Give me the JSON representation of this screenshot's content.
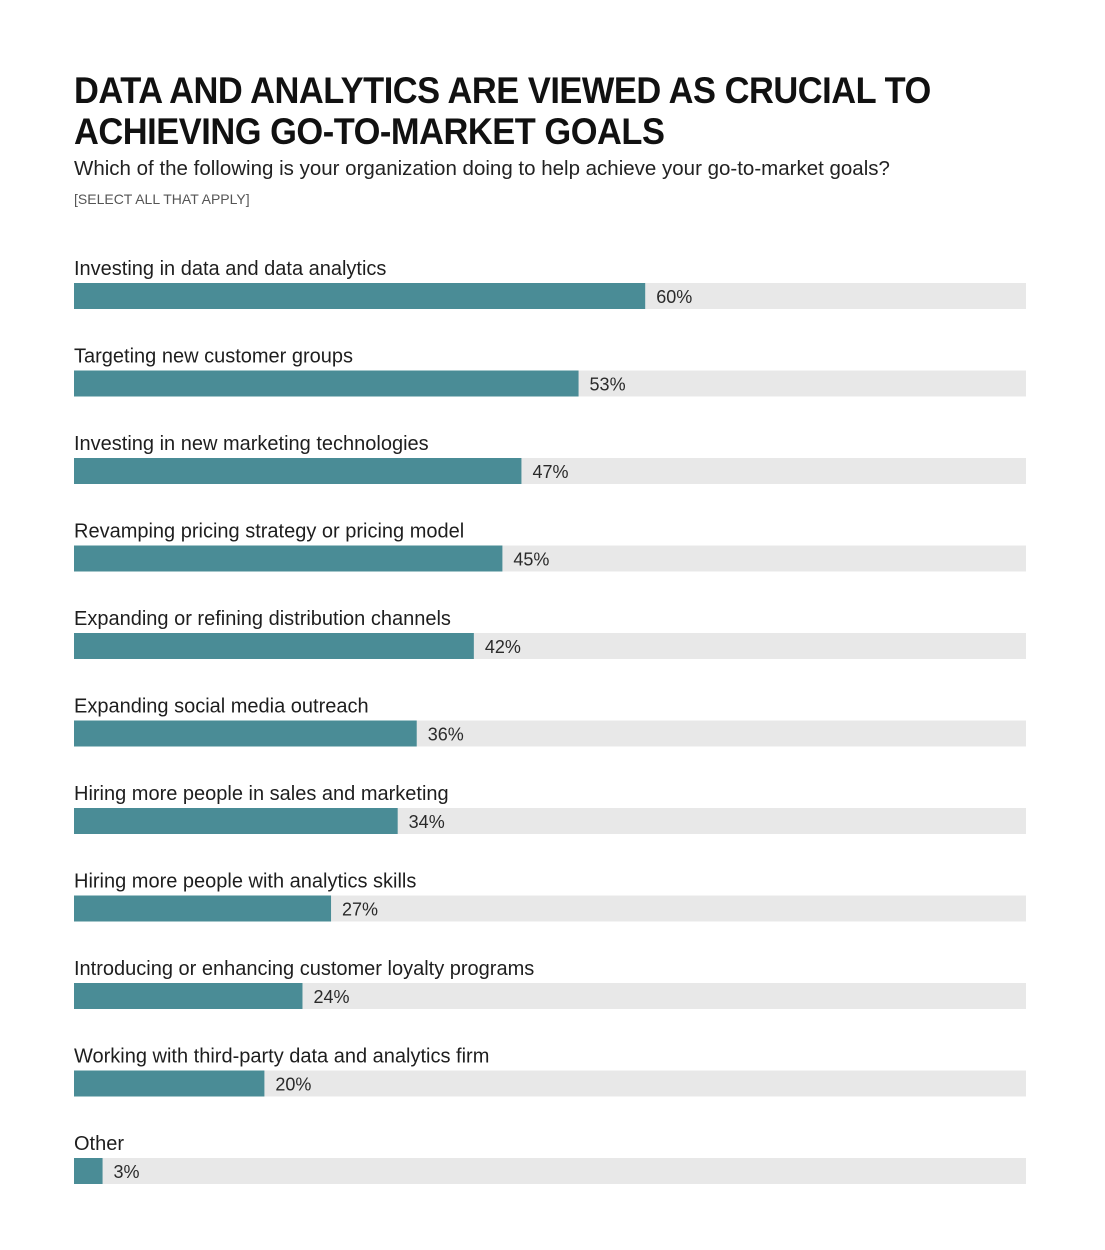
{
  "header": {
    "title": "DATA AND ANALYTICS ARE VIEWED AS CRUCIAL TO ACHIEVING GO-TO-MARKET GOALS",
    "subtitle": "Which of the following is your organization doing to help achieve your go-to-market goals?",
    "note": "[SELECT ALL THAT APPLY]"
  },
  "colors": {
    "bar": "#4a8c96",
    "track": "#e8e8e8"
  },
  "chart_data": {
    "type": "bar",
    "orientation": "horizontal",
    "categories": [
      "Investing in data and data analytics",
      "Targeting new customer groups",
      "Investing in new marketing technologies",
      "Revamping pricing strategy or pricing model",
      "Expanding or refining distribution channels",
      "Expanding social media outreach",
      "Hiring more people in sales and marketing",
      "Hiring more people with analytics skills",
      "Introducing or enhancing customer loyalty programs",
      "Working with third-party data and analytics firm",
      "Other"
    ],
    "values": [
      60,
      53,
      47,
      45,
      42,
      36,
      34,
      27,
      24,
      20,
      3
    ],
    "value_labels": [
      "60%",
      "53%",
      "47%",
      "45%",
      "42%",
      "36%",
      "34%",
      "27%",
      "24%",
      "20%",
      "3%"
    ],
    "unit": "%",
    "xlim": [
      0,
      100
    ],
    "grid": false,
    "legend": "none"
  }
}
